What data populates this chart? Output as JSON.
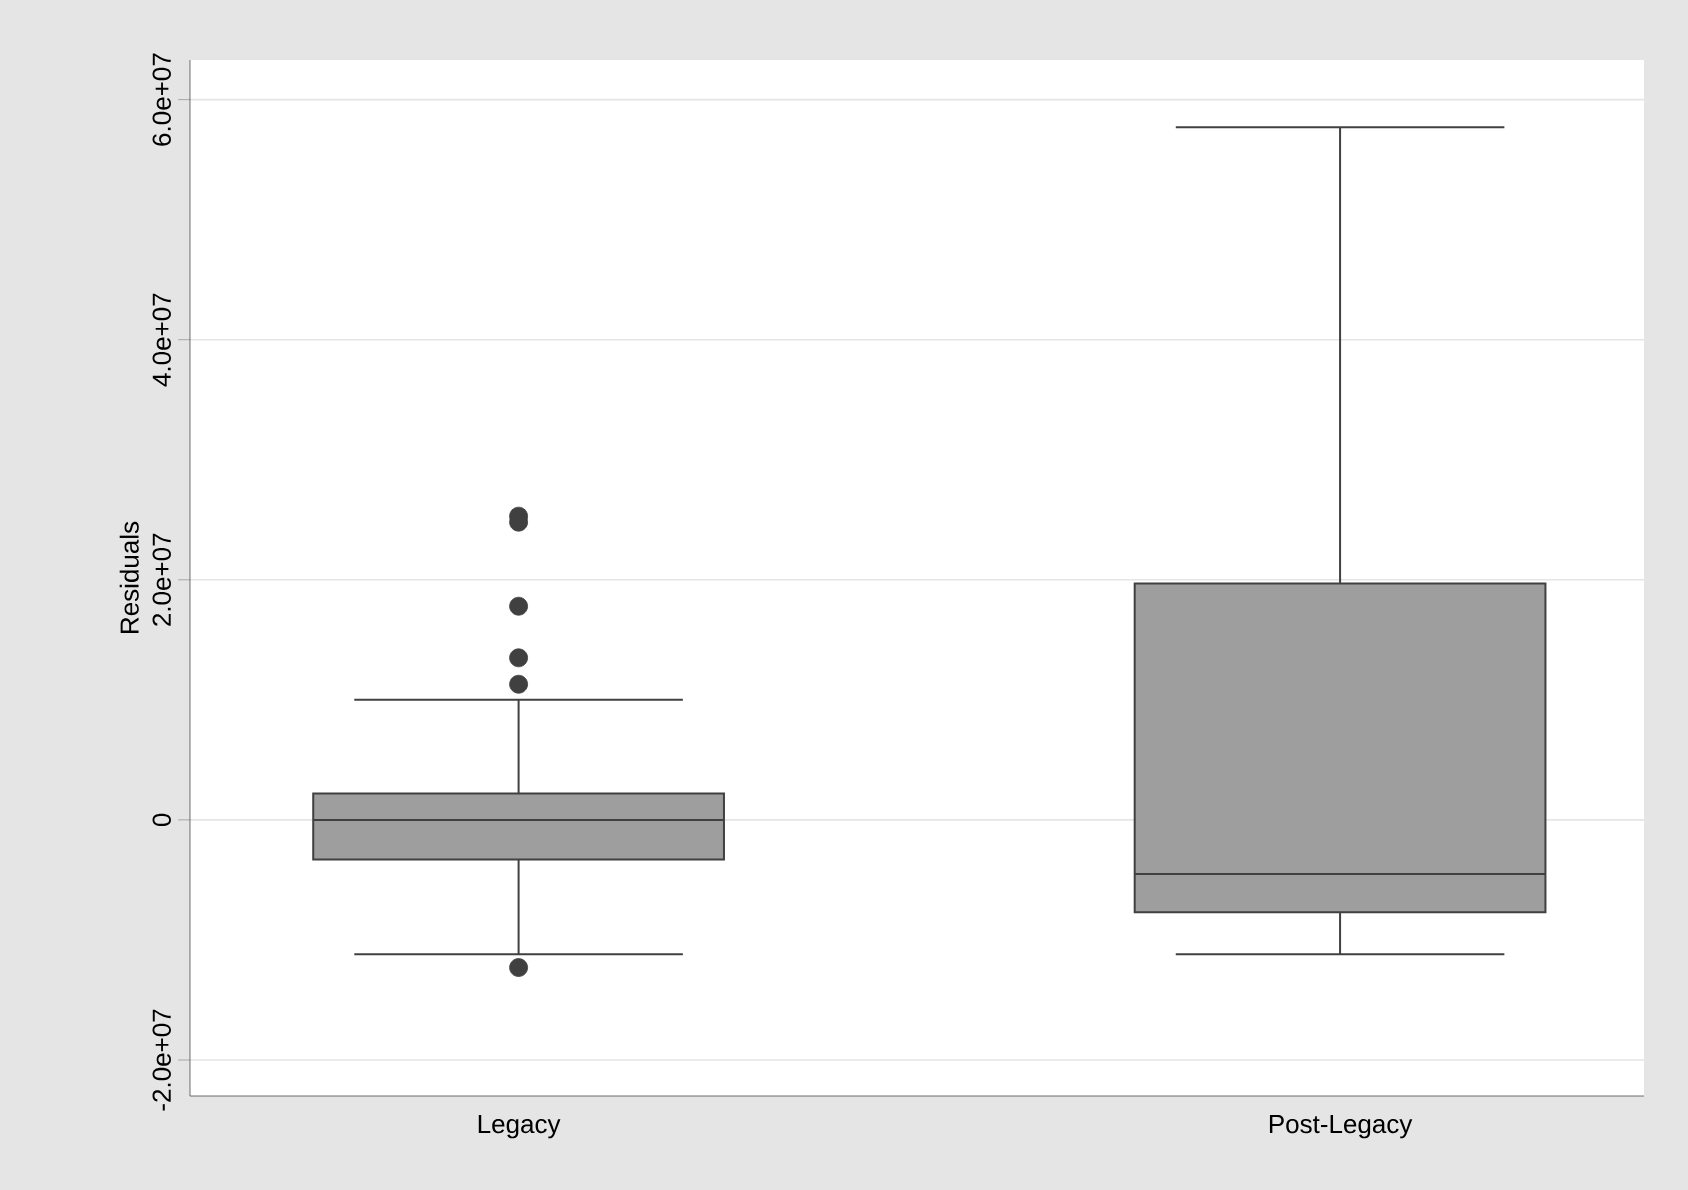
{
  "chart_data": {
    "type": "box",
    "ylabel": "Residuals",
    "categories": [
      "Legacy",
      "Post-Legacy"
    ],
    "boxes": [
      {
        "low": -11200000,
        "q1": -3300000,
        "median": 0,
        "q3": 2200000,
        "high": 10000000,
        "outliers": [
          25300000,
          24800000,
          17800000,
          13500000,
          11300000,
          -12300000
        ]
      },
      {
        "low": -11200000,
        "q1": -7700000,
        "median": -4500000,
        "q3": 19700000,
        "high": 57700000
      }
    ],
    "color": "#9e9e9e",
    "ylim": [
      -23000000,
      63300000
    ],
    "yticks": [
      {
        "value": -20000000,
        "label": "-2.0e+07"
      },
      0,
      {
        "value": 20000000,
        "label": "2.0e+07"
      },
      {
        "value": 40000000,
        "label": "4.0e+07"
      },
      {
        "value": 60000000,
        "label": "6.0e+07"
      }
    ],
    "grid": "y",
    "marker": "circle"
  }
}
